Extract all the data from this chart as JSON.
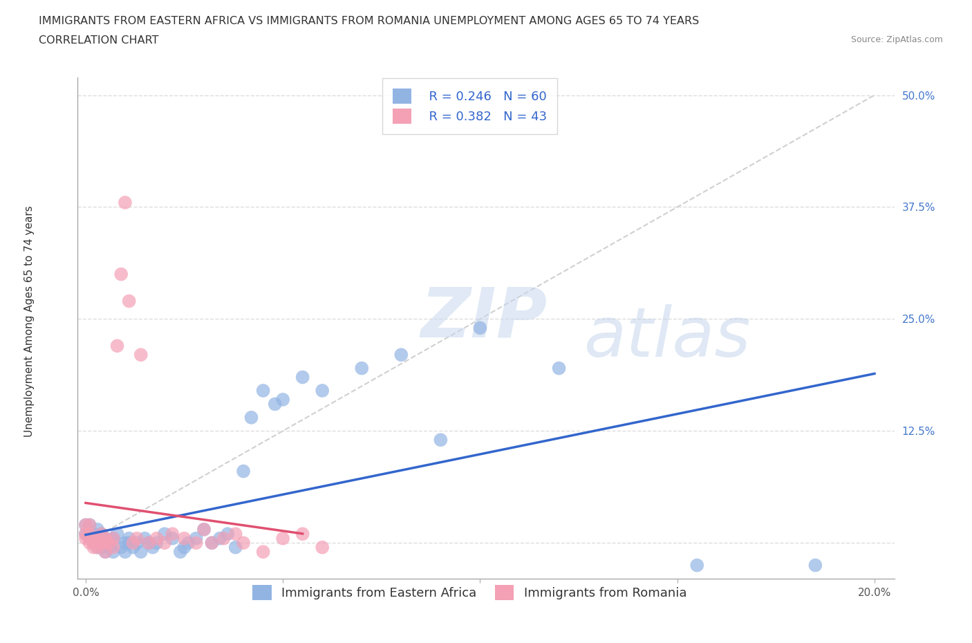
{
  "title_line1": "IMMIGRANTS FROM EASTERN AFRICA VS IMMIGRANTS FROM ROMANIA UNEMPLOYMENT AMONG AGES 65 TO 74 YEARS",
  "title_line2": "CORRELATION CHART",
  "source": "Source: ZipAtlas.com",
  "ylabel": "Unemployment Among Ages 65 to 74 years",
  "xlim": [
    -0.002,
    0.205
  ],
  "ylim": [
    -0.04,
    0.52
  ],
  "xticks": [
    0.0,
    0.05,
    0.1,
    0.15,
    0.2
  ],
  "xticklabels": [
    "0.0%",
    "",
    "",
    "",
    "20.0%"
  ],
  "yticks": [
    0.0,
    0.125,
    0.25,
    0.375,
    0.5
  ],
  "yticklabels": [
    "",
    "12.5%",
    "25.0%",
    "37.5%",
    "50.0%"
  ],
  "blue_color": "#92b4e3",
  "pink_color": "#f4a0b5",
  "blue_line_color": "#3366cc",
  "pink_line_color": "#e05070",
  "diag_line_color": "#d0d0d0",
  "watermark_zip": "ZIP",
  "watermark_atlas": "atlas",
  "legend_R_blue": "R = 0.246",
  "legend_N_blue": "N = 60",
  "legend_R_pink": "R = 0.382",
  "legend_N_pink": "N = 43",
  "blue_scatter_x": [
    0.0,
    0.0,
    0.001,
    0.001,
    0.001,
    0.002,
    0.002,
    0.002,
    0.003,
    0.003,
    0.003,
    0.003,
    0.004,
    0.004,
    0.004,
    0.005,
    0.005,
    0.005,
    0.006,
    0.006,
    0.007,
    0.007,
    0.008,
    0.009,
    0.01,
    0.01,
    0.011,
    0.011,
    0.012,
    0.013,
    0.014,
    0.015,
    0.016,
    0.017,
    0.018,
    0.02,
    0.022,
    0.024,
    0.025,
    0.026,
    0.028,
    0.03,
    0.032,
    0.034,
    0.036,
    0.038,
    0.04,
    0.042,
    0.045,
    0.048,
    0.05,
    0.055,
    0.06,
    0.07,
    0.08,
    0.09,
    0.1,
    0.12,
    0.155,
    0.185
  ],
  "blue_scatter_y": [
    0.01,
    0.02,
    0.005,
    0.01,
    0.02,
    0.0,
    0.005,
    0.01,
    -0.005,
    0.0,
    0.005,
    0.015,
    -0.005,
    0.0,
    0.01,
    -0.01,
    0.0,
    0.005,
    -0.005,
    0.0,
    -0.01,
    0.005,
    0.01,
    -0.005,
    -0.01,
    0.0,
    0.0,
    0.005,
    -0.005,
    0.0,
    -0.01,
    0.005,
    0.0,
    -0.005,
    0.0,
    0.01,
    0.005,
    -0.01,
    -0.005,
    0.0,
    0.005,
    0.015,
    0.0,
    0.005,
    0.01,
    -0.005,
    0.08,
    0.14,
    0.17,
    0.155,
    0.16,
    0.185,
    0.17,
    0.195,
    0.21,
    0.115,
    0.24,
    0.195,
    -0.025,
    -0.025
  ],
  "pink_scatter_x": [
    0.0,
    0.0,
    0.0,
    0.001,
    0.001,
    0.001,
    0.001,
    0.002,
    0.002,
    0.002,
    0.003,
    0.003,
    0.003,
    0.004,
    0.004,
    0.005,
    0.005,
    0.005,
    0.006,
    0.007,
    0.007,
    0.008,
    0.009,
    0.01,
    0.011,
    0.012,
    0.013,
    0.014,
    0.016,
    0.018,
    0.02,
    0.022,
    0.025,
    0.028,
    0.03,
    0.032,
    0.035,
    0.038,
    0.04,
    0.045,
    0.05,
    0.055,
    0.06
  ],
  "pink_scatter_y": [
    0.005,
    0.01,
    0.02,
    0.0,
    0.005,
    0.01,
    0.02,
    -0.005,
    0.0,
    0.005,
    -0.005,
    0.0,
    0.005,
    0.0,
    0.01,
    -0.01,
    0.0,
    0.005,
    0.0,
    -0.005,
    0.005,
    0.22,
    0.3,
    0.38,
    0.27,
    0.0,
    0.005,
    0.21,
    0.0,
    0.005,
    0.0,
    0.01,
    0.005,
    0.0,
    0.015,
    0.0,
    0.005,
    0.01,
    0.0,
    -0.01,
    0.005,
    0.01,
    -0.005
  ],
  "grid_color": "#dddddd",
  "background_color": "#ffffff",
  "title_fontsize": 11.5,
  "axis_label_fontsize": 11,
  "tick_fontsize": 11,
  "legend_fontsize": 13
}
